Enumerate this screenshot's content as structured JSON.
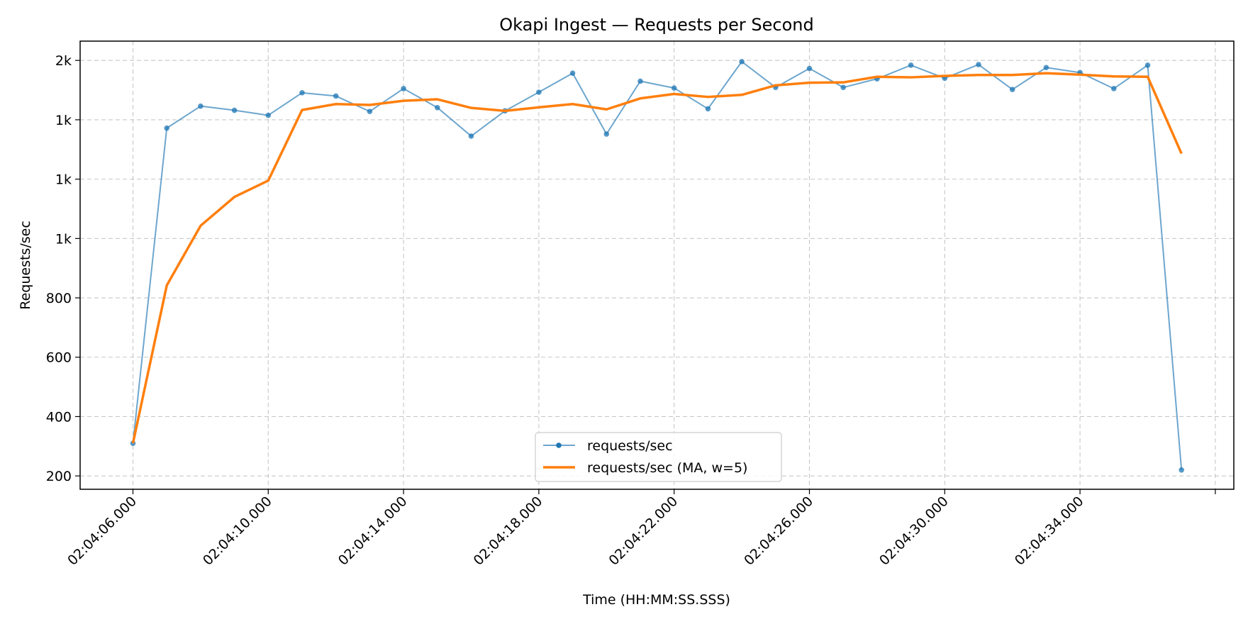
{
  "chart_data": {
    "type": "line",
    "title": "Okapi Ingest — Requests per Second",
    "xlabel": "Time (HH:MM:SS.SSS)",
    "ylabel": "Requests/sec",
    "x": [
      "02:04:06",
      "02:04:07",
      "02:04:08",
      "02:04:09",
      "02:04:10",
      "02:04:11",
      "02:04:12",
      "02:04:13",
      "02:04:14",
      "02:04:15",
      "02:04:16",
      "02:04:17",
      "02:04:18",
      "02:04:19",
      "02:04:20",
      "02:04:21",
      "02:04:22",
      "02:04:23",
      "02:04:24",
      "02:04:25",
      "02:04:26",
      "02:04:27",
      "02:04:28",
      "02:04:29",
      "02:04:30",
      "02:04:31",
      "02:04:32",
      "02:04:33",
      "02:04:34",
      "02:04:35",
      "02:04:36",
      "02:04:37"
    ],
    "x_tick_labels": [
      "02:04:06.000",
      "02:04:10.000",
      "02:04:14.000",
      "02:04:18.000",
      "02:04:22.000",
      "02:04:26.000",
      "02:04:30.000",
      "02:04:34.000",
      ""
    ],
    "y_tick_values": [
      200,
      400,
      600,
      800,
      1000,
      1200,
      1400,
      1600
    ],
    "y_tick_labels": [
      "200",
      "400",
      "600",
      "800",
      "1k",
      "1k",
      "1k",
      "2k"
    ],
    "ylim": [
      155,
      1665
    ],
    "grid": true,
    "legend_position": "bottom-center",
    "series": [
      {
        "name": "requests/sec",
        "color": "#1f77b4",
        "marker": "circle",
        "values": [
          310,
          1372,
          1446,
          1432,
          1415,
          1491,
          1480,
          1428,
          1505,
          1441,
          1345,
          1430,
          1493,
          1557,
          1352,
          1530,
          1507,
          1437,
          1596,
          1509,
          1573,
          1509,
          1538,
          1584,
          1540,
          1586,
          1502,
          1576,
          1559,
          1505,
          1584,
          220
        ]
      },
      {
        "name": "requests/sec (MA, w=5)",
        "color": "#ff7f0e",
        "marker": "none",
        "values": [
          310,
          842,
          1043,
          1140,
          1195,
          1433,
          1453,
          1450,
          1464,
          1469,
          1440,
          1430,
          1442,
          1453,
          1435,
          1472,
          1487,
          1477,
          1484,
          1516,
          1525,
          1526,
          1545,
          1543,
          1548,
          1551,
          1551,
          1557,
          1552,
          1546,
          1545,
          1286
        ]
      }
    ]
  }
}
